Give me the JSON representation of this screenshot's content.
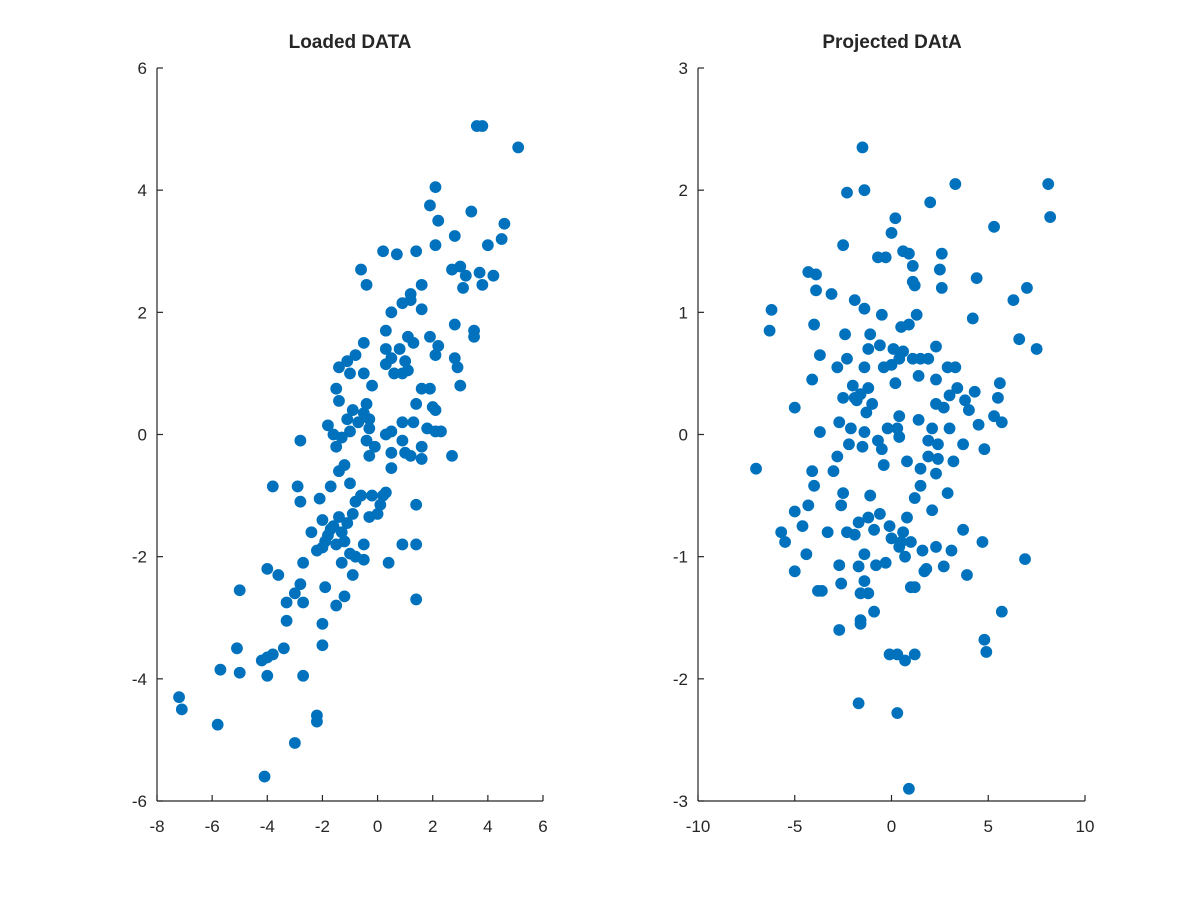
{
  "chart_data": [
    {
      "type": "scatter",
      "title": "Loaded DATA",
      "xlabel": "",
      "ylabel": "",
      "xlim": [
        -8,
        6
      ],
      "ylim": [
        -6,
        6
      ],
      "xticks": [
        -8,
        -6,
        -4,
        -2,
        0,
        2,
        4,
        6
      ],
      "yticks": [
        -6,
        -4,
        -2,
        0,
        2,
        4,
        6
      ],
      "xtick_labels": [
        "-8",
        "-6",
        "-4",
        "-2",
        "0",
        "2",
        "4",
        "6"
      ],
      "ytick_labels": [
        "-6",
        "-4",
        "-2",
        "0",
        "2",
        "4",
        "6"
      ],
      "grid": false,
      "marker_color": "#0072BD",
      "points": [
        [
          3.6,
          5.05
        ],
        [
          3.8,
          5.05
        ],
        [
          5.1,
          4.7
        ],
        [
          2.1,
          4.05
        ],
        [
          1.9,
          3.75
        ],
        [
          2.2,
          3.5
        ],
        [
          3.4,
          3.65
        ],
        [
          4.6,
          3.45
        ],
        [
          4.5,
          3.2
        ],
        [
          4.0,
          3.1
        ],
        [
          2.8,
          3.25
        ],
        [
          2.1,
          3.1
        ],
        [
          1.4,
          3.0
        ],
        [
          0.2,
          3.0
        ],
        [
          0.7,
          2.95
        ],
        [
          3.0,
          2.75
        ],
        [
          2.7,
          2.7
        ],
        [
          3.2,
          2.6
        ],
        [
          3.7,
          2.65
        ],
        [
          4.2,
          2.6
        ],
        [
          3.1,
          2.4
        ],
        [
          3.8,
          2.45
        ],
        [
          1.6,
          2.45
        ],
        [
          1.2,
          2.3
        ],
        [
          -0.6,
          2.7
        ],
        [
          -0.4,
          2.45
        ],
        [
          0.9,
          2.15
        ],
        [
          1.2,
          2.2
        ],
        [
          1.6,
          2.05
        ],
        [
          0.5,
          2.0
        ],
        [
          2.8,
          1.8
        ],
        [
          3.5,
          1.7
        ],
        [
          3.5,
          1.6
        ],
        [
          1.1,
          1.6
        ],
        [
          1.9,
          1.6
        ],
        [
          1.3,
          1.5
        ],
        [
          2.2,
          1.45
        ],
        [
          0.3,
          1.7
        ],
        [
          -0.5,
          1.5
        ],
        [
          -0.8,
          1.3
        ],
        [
          0.3,
          1.4
        ],
        [
          0.8,
          1.4
        ],
        [
          0.5,
          1.25
        ],
        [
          1.0,
          1.2
        ],
        [
          2.1,
          1.3
        ],
        [
          2.8,
          1.25
        ],
        [
          2.9,
          1.1
        ],
        [
          0.3,
          1.15
        ],
        [
          0.6,
          1.0
        ],
        [
          0.9,
          1.0
        ],
        [
          1.1,
          1.05
        ],
        [
          -1.4,
          1.1
        ],
        [
          -1.1,
          1.2
        ],
        [
          -1.0,
          1.0
        ],
        [
          -0.5,
          1.0
        ],
        [
          -1.5,
          0.75
        ],
        [
          1.6,
          0.75
        ],
        [
          1.9,
          0.75
        ],
        [
          3.0,
          0.8
        ],
        [
          -0.2,
          0.8
        ],
        [
          -1.4,
          0.55
        ],
        [
          -0.4,
          0.5
        ],
        [
          -0.9,
          0.4
        ],
        [
          1.4,
          0.5
        ],
        [
          2.0,
          0.45
        ],
        [
          -0.5,
          0.35
        ],
        [
          -0.3,
          0.25
        ],
        [
          -1.1,
          0.25
        ],
        [
          -0.7,
          0.2
        ],
        [
          0.9,
          0.2
        ],
        [
          1.3,
          0.2
        ],
        [
          2.1,
          0.4
        ],
        [
          -1.8,
          0.15
        ],
        [
          -1.0,
          0.05
        ],
        [
          -0.3,
          0.1
        ],
        [
          0.3,
          0.0
        ],
        [
          0.5,
          0.05
        ],
        [
          1.8,
          0.1
        ],
        [
          2.1,
          0.05
        ],
        [
          2.3,
          0.05
        ],
        [
          -1.6,
          0.0
        ],
        [
          -1.3,
          -0.05
        ],
        [
          -0.4,
          -0.1
        ],
        [
          0.9,
          -0.1
        ],
        [
          1.6,
          -0.2
        ],
        [
          -2.8,
          -0.1
        ],
        [
          -1.5,
          -0.2
        ],
        [
          -0.1,
          -0.2
        ],
        [
          -0.3,
          -0.35
        ],
        [
          0.5,
          -0.3
        ],
        [
          1.0,
          -0.3
        ],
        [
          1.2,
          -0.35
        ],
        [
          1.6,
          -0.4
        ],
        [
          2.7,
          -0.35
        ],
        [
          -1.2,
          -0.5
        ],
        [
          -1.4,
          -0.6
        ],
        [
          0.5,
          -0.55
        ],
        [
          -1.7,
          -0.85
        ],
        [
          -3.8,
          -0.85
        ],
        [
          -2.9,
          -0.85
        ],
        [
          -2.8,
          -1.1
        ],
        [
          -1.0,
          -0.8
        ],
        [
          -0.6,
          -1.0
        ],
        [
          -0.2,
          -1.0
        ],
        [
          0.2,
          -1.0
        ],
        [
          0.3,
          -0.95
        ],
        [
          -2.1,
          -1.05
        ],
        [
          -0.8,
          -1.1
        ],
        [
          0.1,
          -1.15
        ],
        [
          1.4,
          -1.15
        ],
        [
          -0.3,
          -1.35
        ],
        [
          0.0,
          -1.3
        ],
        [
          -1.4,
          -1.35
        ],
        [
          -0.9,
          -1.3
        ],
        [
          -1.6,
          -1.5
        ],
        [
          -1.1,
          -1.45
        ],
        [
          -2.0,
          -1.4
        ],
        [
          -1.7,
          -1.55
        ],
        [
          -1.3,
          -1.6
        ],
        [
          -1.8,
          -1.65
        ],
        [
          -1.9,
          -1.75
        ],
        [
          -2.4,
          -1.6
        ],
        [
          -2.0,
          -1.85
        ],
        [
          -1.5,
          -1.8
        ],
        [
          -1.2,
          -1.75
        ],
        [
          -0.5,
          -1.8
        ],
        [
          0.9,
          -1.8
        ],
        [
          1.4,
          -1.8
        ],
        [
          -2.2,
          -1.9
        ],
        [
          -1.0,
          -1.95
        ],
        [
          -0.8,
          -2.0
        ],
        [
          -2.7,
          -2.1
        ],
        [
          -1.3,
          -2.1
        ],
        [
          -0.5,
          -2.05
        ],
        [
          0.4,
          -2.1
        ],
        [
          -4.0,
          -2.2
        ],
        [
          -3.6,
          -2.3
        ],
        [
          -2.8,
          -2.45
        ],
        [
          -0.9,
          -2.3
        ],
        [
          -1.9,
          -2.5
        ],
        [
          -5.0,
          -2.55
        ],
        [
          -3.3,
          -2.75
        ],
        [
          -3.0,
          -2.6
        ],
        [
          -2.7,
          -2.75
        ],
        [
          -1.5,
          -2.8
        ],
        [
          -1.2,
          -2.65
        ],
        [
          1.4,
          -2.7
        ],
        [
          -3.3,
          -3.05
        ],
        [
          -2.0,
          -3.1
        ],
        [
          -2.0,
          -3.45
        ],
        [
          -3.4,
          -3.5
        ],
        [
          -5.1,
          -3.5
        ],
        [
          -3.8,
          -3.6
        ],
        [
          -5.7,
          -3.85
        ],
        [
          -4.2,
          -3.7
        ],
        [
          -4.0,
          -3.65
        ],
        [
          -5.0,
          -3.9
        ],
        [
          -4.0,
          -3.95
        ],
        [
          -2.7,
          -3.95
        ],
        [
          -7.2,
          -4.3
        ],
        [
          -7.1,
          -4.5
        ],
        [
          -2.2,
          -4.6
        ],
        [
          -2.2,
          -4.7
        ],
        [
          -5.8,
          -4.75
        ],
        [
          -3.0,
          -5.05
        ],
        [
          -4.1,
          -5.6
        ]
      ]
    },
    {
      "type": "scatter",
      "title": "Projected DAtA",
      "xlabel": "",
      "ylabel": "",
      "xlim": [
        -10,
        10
      ],
      "ylim": [
        -3,
        3
      ],
      "xticks": [
        -10,
        -5,
        0,
        5,
        10
      ],
      "yticks": [
        -3,
        -2,
        -1,
        0,
        1,
        2,
        3
      ],
      "xtick_labels": [
        "-10",
        "-5",
        "0",
        "5",
        "10"
      ],
      "ytick_labels": [
        "-3",
        "-2",
        "-1",
        "0",
        "1",
        "2",
        "3"
      ],
      "grid": false,
      "marker_color": "#0072BD",
      "points": [
        [
          -1.5,
          2.35
        ],
        [
          3.3,
          2.05
        ],
        [
          8.1,
          2.05
        ],
        [
          -2.3,
          1.98
        ],
        [
          -1.4,
          2.0
        ],
        [
          2.0,
          1.9
        ],
        [
          8.2,
          1.78
        ],
        [
          0.2,
          1.77
        ],
        [
          5.3,
          1.7
        ],
        [
          0.0,
          1.65
        ],
        [
          -2.5,
          1.55
        ],
        [
          0.6,
          1.5
        ],
        [
          0.9,
          1.48
        ],
        [
          2.6,
          1.48
        ],
        [
          -0.7,
          1.45
        ],
        [
          -0.3,
          1.45
        ],
        [
          1.1,
          1.38
        ],
        [
          2.5,
          1.35
        ],
        [
          -4.3,
          1.33
        ],
        [
          -3.9,
          1.31
        ],
        [
          1.1,
          1.25
        ],
        [
          4.4,
          1.28
        ],
        [
          2.6,
          1.2
        ],
        [
          7.0,
          1.2
        ],
        [
          1.2,
          1.22
        ],
        [
          -3.9,
          1.18
        ],
        [
          -3.1,
          1.15
        ],
        [
          -1.9,
          1.1
        ],
        [
          6.3,
          1.1
        ],
        [
          -6.2,
          1.02
        ],
        [
          -1.4,
          1.03
        ],
        [
          1.3,
          0.98
        ],
        [
          -0.5,
          0.98
        ],
        [
          4.2,
          0.95
        ],
        [
          -4.0,
          0.9
        ],
        [
          0.5,
          0.88
        ],
        [
          0.9,
          0.9
        ],
        [
          -6.3,
          0.85
        ],
        [
          -1.1,
          0.82
        ],
        [
          -2.4,
          0.82
        ],
        [
          6.6,
          0.78
        ],
        [
          -0.6,
          0.73
        ],
        [
          2.3,
          0.72
        ],
        [
          -1.2,
          0.7
        ],
        [
          7.5,
          0.7
        ],
        [
          0.1,
          0.7
        ],
        [
          0.6,
          0.68
        ],
        [
          -3.7,
          0.65
        ],
        [
          -2.3,
          0.62
        ],
        [
          0.4,
          0.62
        ],
        [
          1.1,
          0.62
        ],
        [
          1.5,
          0.62
        ],
        [
          1.9,
          0.62
        ],
        [
          -0.4,
          0.55
        ],
        [
          0.0,
          0.57
        ],
        [
          -2.8,
          0.55
        ],
        [
          -1.4,
          0.55
        ],
        [
          2.9,
          0.55
        ],
        [
          3.3,
          0.55
        ],
        [
          1.4,
          0.48
        ],
        [
          5.6,
          0.42
        ],
        [
          -4.1,
          0.45
        ],
        [
          -2.0,
          0.4
        ],
        [
          -1.2,
          0.38
        ],
        [
          0.2,
          0.42
        ],
        [
          2.3,
          0.45
        ],
        [
          3.4,
          0.38
        ],
        [
          4.3,
          0.35
        ],
        [
          -2.5,
          0.3
        ],
        [
          -1.9,
          0.3
        ],
        [
          -1.6,
          0.33
        ],
        [
          3.0,
          0.32
        ],
        [
          5.5,
          0.3
        ],
        [
          -1.0,
          0.25
        ],
        [
          -1.8,
          0.28
        ],
        [
          2.3,
          0.25
        ],
        [
          3.8,
          0.28
        ],
        [
          -5.0,
          0.22
        ],
        [
          2.7,
          0.22
        ],
        [
          4.0,
          0.2
        ],
        [
          -1.3,
          0.18
        ],
        [
          5.3,
          0.15
        ],
        [
          0.4,
          0.15
        ],
        [
          1.4,
          0.12
        ],
        [
          -2.7,
          0.1
        ],
        [
          5.7,
          0.1
        ],
        [
          -0.2,
          0.05
        ],
        [
          0.3,
          0.05
        ],
        [
          2.1,
          0.05
        ],
        [
          3.0,
          0.05
        ],
        [
          4.5,
          0.08
        ],
        [
          -2.1,
          0.05
        ],
        [
          -1.4,
          0.02
        ],
        [
          -3.7,
          0.02
        ],
        [
          0.4,
          -0.02
        ],
        [
          -0.7,
          -0.05
        ],
        [
          1.9,
          -0.05
        ],
        [
          2.4,
          -0.08
        ],
        [
          -2.2,
          -0.08
        ],
        [
          3.7,
          -0.08
        ],
        [
          -1.5,
          -0.1
        ],
        [
          4.8,
          -0.12
        ],
        [
          1.9,
          -0.18
        ],
        [
          2.4,
          -0.2
        ],
        [
          -0.5,
          -0.12
        ],
        [
          -2.8,
          -0.18
        ],
        [
          -7.0,
          -0.28
        ],
        [
          -0.4,
          -0.25
        ],
        [
          0.8,
          -0.22
        ],
        [
          1.5,
          -0.28
        ],
        [
          3.2,
          -0.22
        ],
        [
          -4.1,
          -0.3
        ],
        [
          -3.0,
          -0.3
        ],
        [
          2.3,
          -0.32
        ],
        [
          -4.0,
          -0.42
        ],
        [
          1.5,
          -0.42
        ],
        [
          -2.5,
          -0.48
        ],
        [
          -1.1,
          -0.5
        ],
        [
          2.9,
          -0.48
        ],
        [
          1.2,
          -0.52
        ],
        [
          -2.6,
          -0.58
        ],
        [
          -4.3,
          -0.58
        ],
        [
          -5.0,
          -0.63
        ],
        [
          -0.6,
          -0.65
        ],
        [
          0.8,
          -0.68
        ],
        [
          -1.2,
          -0.68
        ],
        [
          2.1,
          -0.62
        ],
        [
          -1.7,
          -0.72
        ],
        [
          -4.6,
          -0.75
        ],
        [
          -0.1,
          -0.75
        ],
        [
          -0.9,
          -0.78
        ],
        [
          3.7,
          -0.78
        ],
        [
          -5.7,
          -0.8
        ],
        [
          -1.9,
          -0.82
        ],
        [
          -2.3,
          -0.8
        ],
        [
          -3.3,
          -0.8
        ],
        [
          0.6,
          -0.8
        ],
        [
          -5.5,
          -0.88
        ],
        [
          0.0,
          -0.85
        ],
        [
          0.5,
          -0.88
        ],
        [
          4.7,
          -0.88
        ],
        [
          1.0,
          -0.88
        ],
        [
          0.4,
          -0.92
        ],
        [
          2.3,
          -0.92
        ],
        [
          1.6,
          -0.95
        ],
        [
          3.1,
          -0.95
        ],
        [
          -1.4,
          -0.98
        ],
        [
          -4.4,
          -0.98
        ],
        [
          0.7,
          -1.0
        ],
        [
          6.9,
          -1.02
        ],
        [
          -0.3,
          -1.05
        ],
        [
          -2.7,
          -1.07
        ],
        [
          -0.8,
          -1.07
        ],
        [
          -1.7,
          -1.08
        ],
        [
          2.7,
          -1.08
        ],
        [
          1.8,
          -1.1
        ],
        [
          -5.0,
          -1.12
        ],
        [
          1.7,
          -1.12
        ],
        [
          3.9,
          -1.15
        ],
        [
          -2.6,
          -1.22
        ],
        [
          -1.4,
          -1.2
        ],
        [
          1.0,
          -1.25
        ],
        [
          1.2,
          -1.25
        ],
        [
          -3.8,
          -1.28
        ],
        [
          -3.6,
          -1.28
        ],
        [
          -1.6,
          -1.3
        ],
        [
          -1.2,
          -1.3
        ],
        [
          -0.9,
          -1.45
        ],
        [
          -1.6,
          -1.52
        ],
        [
          -1.6,
          -1.55
        ],
        [
          5.7,
          -1.45
        ],
        [
          -2.7,
          -1.6
        ],
        [
          4.8,
          -1.68
        ],
        [
          4.9,
          -1.78
        ],
        [
          -0.1,
          -1.8
        ],
        [
          0.3,
          -1.8
        ],
        [
          1.2,
          -1.8
        ],
        [
          0.7,
          -1.85
        ],
        [
          -1.7,
          -2.2
        ],
        [
          0.3,
          -2.28
        ],
        [
          0.9,
          -2.9
        ]
      ]
    }
  ]
}
